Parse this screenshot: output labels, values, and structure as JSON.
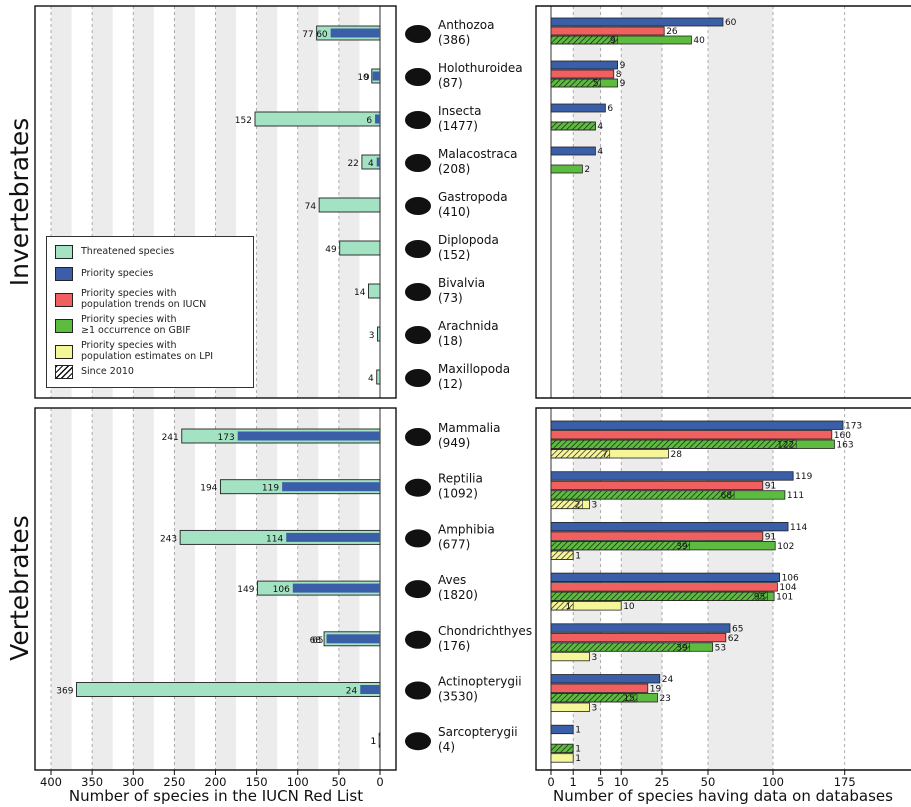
{
  "colors": {
    "threatened": "#a3e2c3",
    "priority": "#3b5ea8",
    "iucn": "#f06060",
    "gbif": "#5dbb3f",
    "lpi": "#f5f59a",
    "grid": "#9a9a9a",
    "band": "#ececec"
  },
  "sections": {
    "invertebrates": "Invertebrates",
    "vertebrates": "Vertebrates"
  },
  "axes": {
    "left_xlabel": "Number of species in the IUCN Red List",
    "right_xlabel": "Number of species having data on databases",
    "left_ticks": [
      400,
      350,
      300,
      250,
      200,
      150,
      100,
      50,
      0
    ],
    "right_ticks": [
      0,
      1,
      5,
      10,
      25,
      50,
      100,
      175
    ]
  },
  "legend": {
    "items": [
      {
        "label": "Threatened species",
        "color": "threatened",
        "hatch": false
      },
      {
        "label": "Priority species",
        "color": "priority",
        "hatch": false
      },
      {
        "label": "Priority species with\npopulation trends on IUCN",
        "color": "iucn",
        "hatch": false
      },
      {
        "label": "Priority species with\n≥1 occurrence on GBIF",
        "color": "gbif",
        "hatch": false
      },
      {
        "label": "Priority species with\npopulation estimates on LPI",
        "color": "lpi",
        "hatch": false
      },
      {
        "label": "Since 2010",
        "color": "",
        "hatch": true
      }
    ]
  },
  "chart_data": [
    {
      "type": "bar",
      "orientation": "horizontal",
      "xlabel": "Number of species in the IUCN Red List",
      "xlim": [
        400,
        0
      ],
      "grid": true,
      "groups": [
        {
          "name": "Invertebrates",
          "rows": [
            {
              "label": "Anthozoa",
              "count": "(386)",
              "threatened": 77,
              "priority": 60
            },
            {
              "label": "Holothuroidea",
              "count": "(87)",
              "threatened": 10,
              "priority": 9
            },
            {
              "label": "Insecta",
              "count": "(1477)",
              "threatened": 152,
              "priority": 6
            },
            {
              "label": "Malacostraca",
              "count": "(208)",
              "threatened": 22,
              "priority": 4
            },
            {
              "label": "Gastropoda",
              "count": "(410)",
              "threatened": 74,
              "priority": null
            },
            {
              "label": "Diplopoda",
              "count": "(152)",
              "threatened": 49,
              "priority": null
            },
            {
              "label": "Bivalvia",
              "count": "(73)",
              "threatened": 14,
              "priority": null
            },
            {
              "label": "Arachnida",
              "count": "(18)",
              "threatened": 3,
              "priority": null
            },
            {
              "label": "Maxillopoda",
              "count": "(12)",
              "threatened": 4,
              "priority": null
            }
          ]
        },
        {
          "name": "Vertebrates",
          "rows": [
            {
              "label": "Mammalia",
              "count": "(949)",
              "threatened": 241,
              "priority": 173
            },
            {
              "label": "Reptilia",
              "count": "(1092)",
              "threatened": 194,
              "priority": 119
            },
            {
              "label": "Amphibia",
              "count": "(677)",
              "threatened": 243,
              "priority": 114
            },
            {
              "label": "Aves",
              "count": "(1820)",
              "threatened": 149,
              "priority": 106
            },
            {
              "label": "Chondrichthyes",
              "count": "(176)",
              "threatened": 68,
              "priority": 65
            },
            {
              "label": "Actinopterygii",
              "count": "(3530)",
              "threatened": 369,
              "priority": 24
            },
            {
              "label": "Sarcopterygii",
              "count": "(4)",
              "threatened": 1,
              "priority": 1
            }
          ]
        }
      ]
    },
    {
      "type": "bar",
      "orientation": "horizontal",
      "xlabel": "Number of species having data on databases",
      "x_scale": "sqrt",
      "xlim": [
        0,
        175
      ],
      "grid": true,
      "groups": [
        {
          "name": "Invertebrates",
          "rows": [
            {
              "label": "Anthozoa",
              "priority": 60,
              "iucn": 26,
              "gbif": 40,
              "gbif_since2010": 9,
              "lpi": null,
              "lpi_since2010": null
            },
            {
              "label": "Holothuroidea",
              "priority": 9,
              "iucn": 8,
              "gbif": 9,
              "gbif_since2010": 5,
              "lpi": null,
              "lpi_since2010": null
            },
            {
              "label": "Insecta",
              "priority": 6,
              "iucn": null,
              "gbif": 4,
              "gbif_since2010": 4,
              "lpi": null,
              "lpi_since2010": null
            },
            {
              "label": "Malacostraca",
              "priority": 4,
              "iucn": null,
              "gbif": 2,
              "gbif_since2010": null,
              "lpi": null,
              "lpi_since2010": null
            },
            {
              "label": "Gastropoda",
              "priority": null,
              "iucn": null,
              "gbif": null,
              "gbif_since2010": null,
              "lpi": null,
              "lpi_since2010": null
            },
            {
              "label": "Diplopoda",
              "priority": null,
              "iucn": null,
              "gbif": null,
              "gbif_since2010": null,
              "lpi": null,
              "lpi_since2010": null
            },
            {
              "label": "Bivalvia",
              "priority": null,
              "iucn": null,
              "gbif": null,
              "gbif_since2010": null,
              "lpi": null,
              "lpi_since2010": null
            },
            {
              "label": "Arachnida",
              "priority": null,
              "iucn": null,
              "gbif": null,
              "gbif_since2010": null,
              "lpi": null,
              "lpi_since2010": null
            },
            {
              "label": "Maxillopoda",
              "priority": null,
              "iucn": null,
              "gbif": null,
              "gbif_since2010": null,
              "lpi": null,
              "lpi_since2010": null
            }
          ]
        },
        {
          "name": "Vertebrates",
          "rows": [
            {
              "label": "Mammalia",
              "priority": 173,
              "iucn": 160,
              "gbif": 163,
              "gbif_since2010": 122,
              "lpi": 28,
              "lpi_since2010": 7
            },
            {
              "label": "Reptilia",
              "priority": 119,
              "iucn": 91,
              "gbif": 111,
              "gbif_since2010": 68,
              "lpi": 3,
              "lpi_since2010": 2
            },
            {
              "label": "Amphibia",
              "priority": 114,
              "iucn": 91,
              "gbif": 102,
              "gbif_since2010": 39,
              "lpi": 1,
              "lpi_since2010": 1
            },
            {
              "label": "Aves",
              "priority": 106,
              "iucn": 104,
              "gbif": 101,
              "gbif_since2010": 95,
              "lpi": 10,
              "lpi_since2010": 1
            },
            {
              "label": "Chondrichthyes",
              "priority": 65,
              "iucn": 62,
              "gbif": 53,
              "gbif_since2010": 39,
              "lpi": 3,
              "lpi_since2010": null
            },
            {
              "label": "Actinopterygii",
              "priority": 24,
              "iucn": 19,
              "gbif": 23,
              "gbif_since2010": 15,
              "lpi": 3,
              "lpi_since2010": null
            },
            {
              "label": "Sarcopterygii",
              "priority": 1,
              "iucn": null,
              "gbif": 1,
              "gbif_since2010": 1,
              "lpi": 1,
              "lpi_since2010": null
            }
          ]
        }
      ]
    }
  ]
}
